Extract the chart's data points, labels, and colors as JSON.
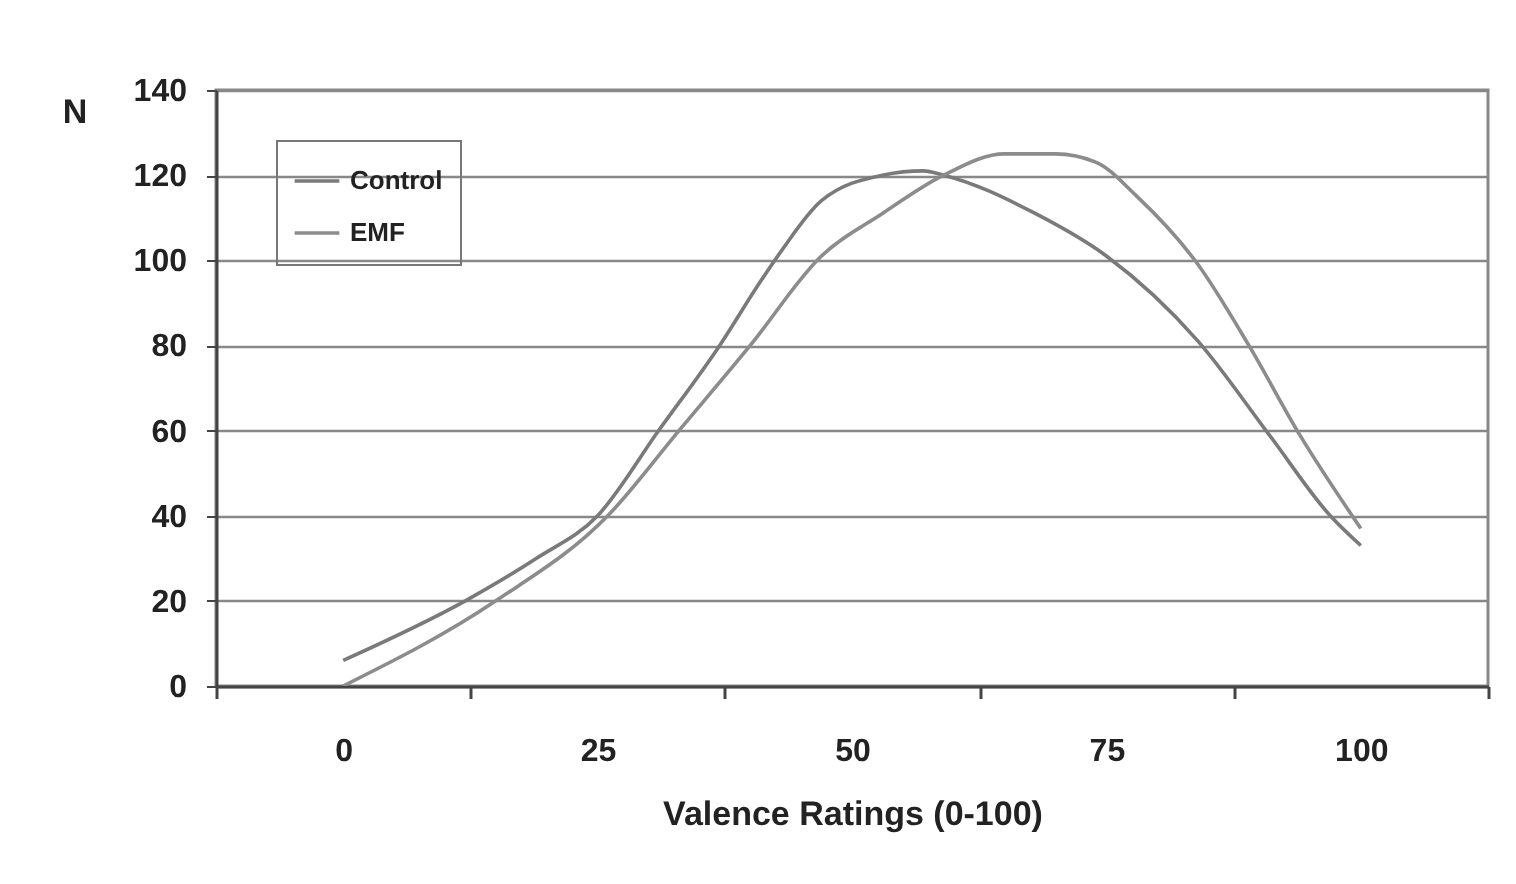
{
  "chart_data": {
    "type": "line",
    "xlabel": "Valence Ratings (0-100)",
    "ylabel": "N",
    "xlim": [
      -12.5,
      112.5
    ],
    "xticks": [
      {
        "value": -12.5,
        "label": null
      },
      0,
      {
        "value": 12.5,
        "label": null
      },
      25,
      {
        "value": 37.5,
        "label": null
      },
      50,
      {
        "value": 62.5,
        "label": null
      },
      75,
      {
        "value": 87.5,
        "label": null
      },
      100,
      {
        "value": 112.5,
        "label": null
      }
    ],
    "ylim": [
      0,
      140
    ],
    "yticks": [
      0,
      20,
      40,
      60,
      80,
      100,
      120,
      140
    ],
    "grid": "y",
    "legend": "top left",
    "line_style": "solid",
    "marker": "none",
    "series": [
      {
        "name": "Control",
        "color": "#7a7a7a",
        "x": [
          0,
          12,
          19,
          25,
          31,
          37,
          41,
          43,
          47,
          53,
          57,
          59,
          68,
          75,
          84,
          91,
          97,
          100
        ],
        "values": [
          6,
          20,
          30,
          40,
          60,
          80,
          95,
          102,
          114,
          120,
          121,
          120,
          111,
          101,
          81,
          59,
          40,
          33
        ]
      },
      {
        "name": "EMF",
        "color": "#8c8c8c",
        "x": [
          0,
          15,
          26,
          33,
          40,
          47,
          53,
          59,
          65,
          70,
          74,
          78,
          84,
          89,
          94,
          100
        ],
        "values": [
          0,
          20,
          40,
          60,
          80,
          101,
          111,
          120,
          125,
          125,
          123,
          115,
          99,
          80,
          59,
          37
        ]
      }
    ]
  }
}
